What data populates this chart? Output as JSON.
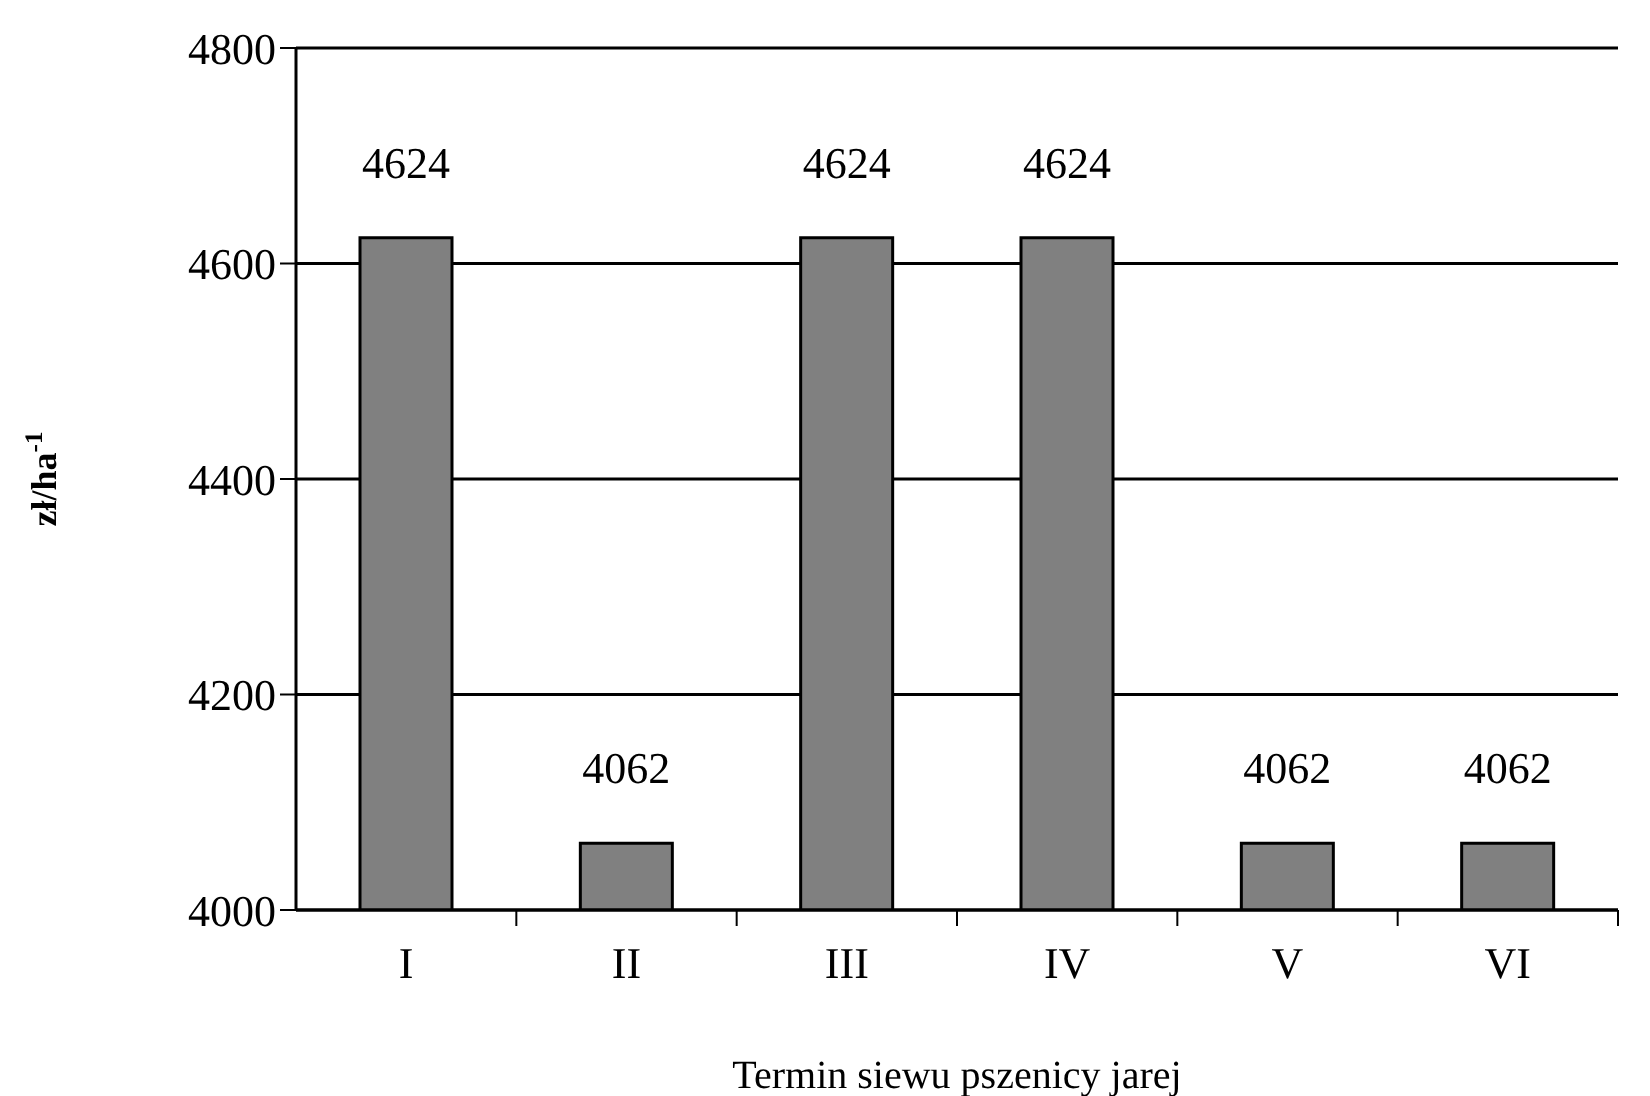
{
  "chart_data": {
    "type": "bar",
    "xlabel": "Termin siewu pszenicy jarej",
    "ylabel": "zł/ha$^{-1}$",
    "categories": [
      "I",
      "II",
      "III",
      "IV",
      "V",
      "VI"
    ],
    "values": [
      4624,
      4062,
      4624,
      4624,
      4062,
      4062
    ],
    "color": "#808080",
    "ylim": [
      4000,
      4800
    ],
    "yticks": [
      4000,
      4200,
      4400,
      4600,
      4800
    ],
    "grid": "y",
    "data_labels": true
  }
}
